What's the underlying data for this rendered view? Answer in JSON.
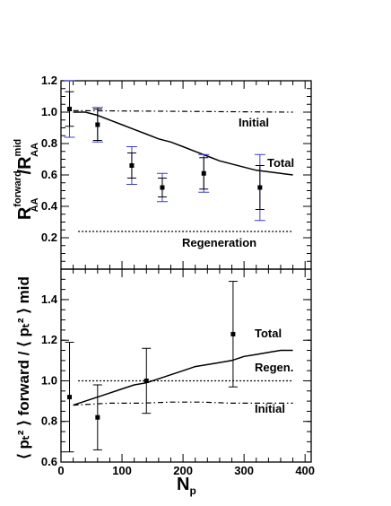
{
  "chart_data": [
    {
      "type": "scatter",
      "panel": "top",
      "ylabel": "R_AA^forward / R_AA^mid",
      "xlim": [
        0,
        410
      ],
      "ylim": [
        0,
        1.2
      ],
      "y_ticks": [
        "0.2",
        "0.4",
        "0.6",
        "0.8",
        "1.0",
        "1.2"
      ],
      "points": [
        {
          "x": 14,
          "y": 1.02,
          "err_stat": 0.11,
          "err_sys": 0.18
        },
        {
          "x": 60,
          "y": 0.92,
          "err_stat": 0.1,
          "err_sys": 0.11
        },
        {
          "x": 116,
          "y": 0.66,
          "err_stat": 0.08,
          "err_sys": 0.12
        },
        {
          "x": 166,
          "y": 0.52,
          "err_stat": 0.06,
          "err_sys": 0.09
        },
        {
          "x": 234,
          "y": 0.61,
          "err_stat": 0.1,
          "err_sys": 0.12
        },
        {
          "x": 326,
          "y": 0.52,
          "err_stat": 0.14,
          "err_sys": 0.21
        }
      ],
      "curves": [
        {
          "name": "Total",
          "style": "solid",
          "x": [
            20,
            40,
            60,
            80,
            100,
            120,
            140,
            160,
            180,
            200,
            220,
            240,
            260,
            280,
            300,
            320,
            340,
            360,
            380
          ],
          "y": [
            1.0,
            1.0,
            0.98,
            0.95,
            0.92,
            0.89,
            0.86,
            0.83,
            0.81,
            0.78,
            0.75,
            0.72,
            0.69,
            0.67,
            0.65,
            0.63,
            0.62,
            0.61,
            0.6
          ]
        },
        {
          "name": "Initial",
          "style": "dashdot",
          "x": [
            20,
            380
          ],
          "y": [
            1.01,
            1.0
          ]
        },
        {
          "name": "Regeneration",
          "style": "dotted",
          "x": [
            28,
            380
          ],
          "y": [
            0.24,
            0.24
          ]
        }
      ],
      "annotations": [
        "Initial",
        "Total",
        "Regeneration"
      ]
    },
    {
      "type": "scatter",
      "panel": "bottom",
      "xlabel": "N_p",
      "ylabel": "<p_t^2>^forward / <p_t^2>^mid",
      "xlim": [
        0,
        410
      ],
      "ylim": [
        0.6,
        1.55
      ],
      "x_ticks": [
        "0",
        "100",
        "200",
        "300",
        "400"
      ],
      "y_ticks": [
        "0.6",
        "0.8",
        "1.0",
        "1.2",
        "1.4"
      ],
      "points": [
        {
          "x": 14,
          "y": 0.92,
          "err": 0.27
        },
        {
          "x": 60,
          "y": 0.82,
          "err": 0.16
        },
        {
          "x": 140,
          "y": 1.0,
          "err": 0.16
        },
        {
          "x": 282,
          "y": 1.23,
          "err": 0.26
        }
      ],
      "curves": [
        {
          "name": "Total",
          "style": "solid",
          "x": [
            20,
            40,
            60,
            80,
            100,
            120,
            140,
            160,
            180,
            200,
            220,
            240,
            260,
            280,
            300,
            320,
            340,
            360,
            380
          ],
          "y": [
            0.88,
            0.9,
            0.92,
            0.94,
            0.96,
            0.98,
            0.99,
            1.01,
            1.03,
            1.05,
            1.07,
            1.08,
            1.09,
            1.1,
            1.12,
            1.13,
            1.14,
            1.15,
            1.15
          ]
        },
        {
          "name": "Regen.",
          "style": "dotted",
          "x": [
            28,
            380
          ],
          "y": [
            1.0,
            1.0
          ]
        },
        {
          "name": "Initial",
          "style": "dashdot",
          "x": [
            20,
            80,
            130,
            180,
            230,
            280,
            330,
            380
          ],
          "y": [
            0.88,
            0.89,
            0.89,
            0.895,
            0.895,
            0.89,
            0.89,
            0.89
          ]
        }
      ],
      "annotations": [
        "Total",
        "Regen.",
        "Initial"
      ]
    }
  ],
  "labels": {
    "top_ylabel_main": "R",
    "top_ylabel_sup": "forward",
    "top_ylabel_sub": "AA",
    "top_ylabel_slash": "/R",
    "top_ylabel_sup2": "mid",
    "top_ylabel_sub2": "AA",
    "bottom_ylabel": "⟨ pₜ² ⟩ forward / ⟨ pₜ² ⟩ mid",
    "xlabel_main": "N",
    "xlabel_sub": "p",
    "ann_top_initial": "Initial",
    "ann_top_total": "Total",
    "ann_top_regen": "Regeneration",
    "ann_bot_total": "Total",
    "ann_bot_regen": "Regen.",
    "ann_bot_initial": "Initial"
  },
  "colors": {
    "sys_error": "#3b3bd6",
    "stat_error": "#000000",
    "marker": "#000000",
    "curve": "#000000"
  }
}
